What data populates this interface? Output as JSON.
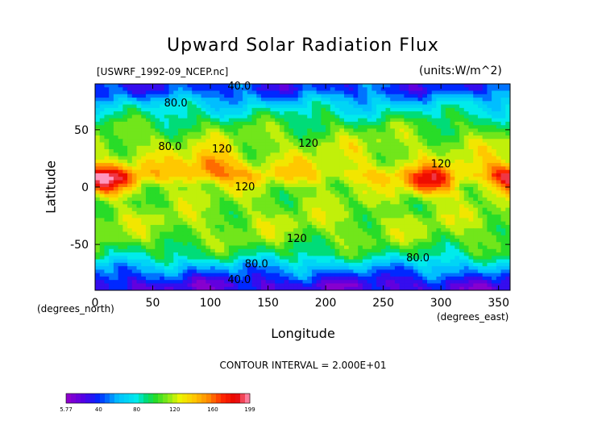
{
  "chart_data": {
    "type": "heatmap",
    "title": "Upward Solar Radiation Flux",
    "file_label": "[USWRF_1992-09_NCEP.nc]",
    "units": "(units:W/m^2)",
    "xlabel": "Longitude",
    "ylabel": "Latitude",
    "x_note": "(degrees_east)",
    "y_note": "(degrees_north)",
    "xlim": [
      0,
      360
    ],
    "ylim": [
      -90,
      90
    ],
    "x_ticks": [
      "0",
      "50",
      "100",
      "150",
      "200",
      "250",
      "300",
      "350"
    ],
    "y_ticks": [
      "50",
      "0",
      "-50"
    ],
    "contour_interval": "CONTOUR INTERVAL = 2.000E+01",
    "colorbar": {
      "min": 5.77,
      "max": 199,
      "tick_labels": [
        "5.77",
        "40",
        "80",
        "120",
        "160",
        "199"
      ]
    },
    "contour_labels": [
      "40.0",
      "80.0",
      "80.0",
      "120",
      "120",
      "120",
      "120",
      "120",
      "80.0",
      "80.0",
      "40.0"
    ],
    "lat_band_approx": [
      {
        "lat": 85,
        "value": 40
      },
      {
        "lat": 70,
        "value": 75
      },
      {
        "lat": 55,
        "value": 100
      },
      {
        "lat": 40,
        "value": 115
      },
      {
        "lat": 25,
        "value": 120
      },
      {
        "lat": 10,
        "value": 135
      },
      {
        "lat": 0,
        "value": 115
      },
      {
        "lat": -15,
        "value": 110
      },
      {
        "lat": -30,
        "value": 115
      },
      {
        "lat": -45,
        "value": 110
      },
      {
        "lat": -60,
        "value": 90
      },
      {
        "lat": -70,
        "value": 60
      },
      {
        "lat": -85,
        "value": 25
      }
    ],
    "hotspots": [
      {
        "lon": 15,
        "lat": 5,
        "value": 170
      },
      {
        "lon": 100,
        "lat": 18,
        "value": 165
      },
      {
        "lon": 290,
        "lat": 3,
        "value": 175
      },
      {
        "lon": 355,
        "lat": 10,
        "value": 165
      }
    ]
  }
}
